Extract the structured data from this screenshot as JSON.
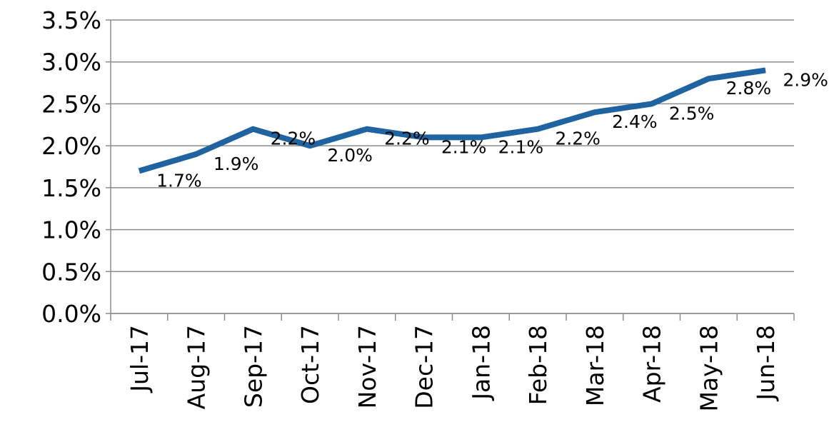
{
  "chart_data": {
    "type": "line",
    "categories": [
      "Jul-17",
      "Aug-17",
      "Sep-17",
      "Oct-17",
      "Nov-17",
      "Dec-17",
      "Jan-18",
      "Feb-18",
      "Mar-18",
      "Apr-18",
      "May-18",
      "Jun-18"
    ],
    "series": [
      {
        "name": null,
        "color": "#1f64a0",
        "values": [
          1.7,
          1.9,
          2.2,
          2.0,
          2.2,
          2.1,
          2.1,
          2.2,
          2.4,
          2.5,
          2.8,
          2.9
        ],
        "value_labels": [
          "1.7%",
          "1.9%",
          "2.2%",
          "2.0%",
          "2.2%",
          "2.1%",
          "2.1%",
          "2.2%",
          "2.4%",
          "2.5%",
          "2.8%",
          "2.9%"
        ]
      }
    ],
    "ylim": [
      0,
      3.5
    ],
    "yticks": [
      {
        "value": 0,
        "label": "0.0%"
      },
      {
        "value": 0.5,
        "label": "0.5%"
      },
      {
        "value": 1,
        "label": "1.0%"
      },
      {
        "value": 1.5,
        "label": "1.5%"
      },
      {
        "value": 2,
        "label": "2.0%"
      },
      {
        "value": 2.5,
        "label": "2.5%"
      },
      {
        "value": 3,
        "label": "3.0%"
      },
      {
        "value": 3.5,
        "label": "3.5%"
      }
    ],
    "grid": true
  }
}
